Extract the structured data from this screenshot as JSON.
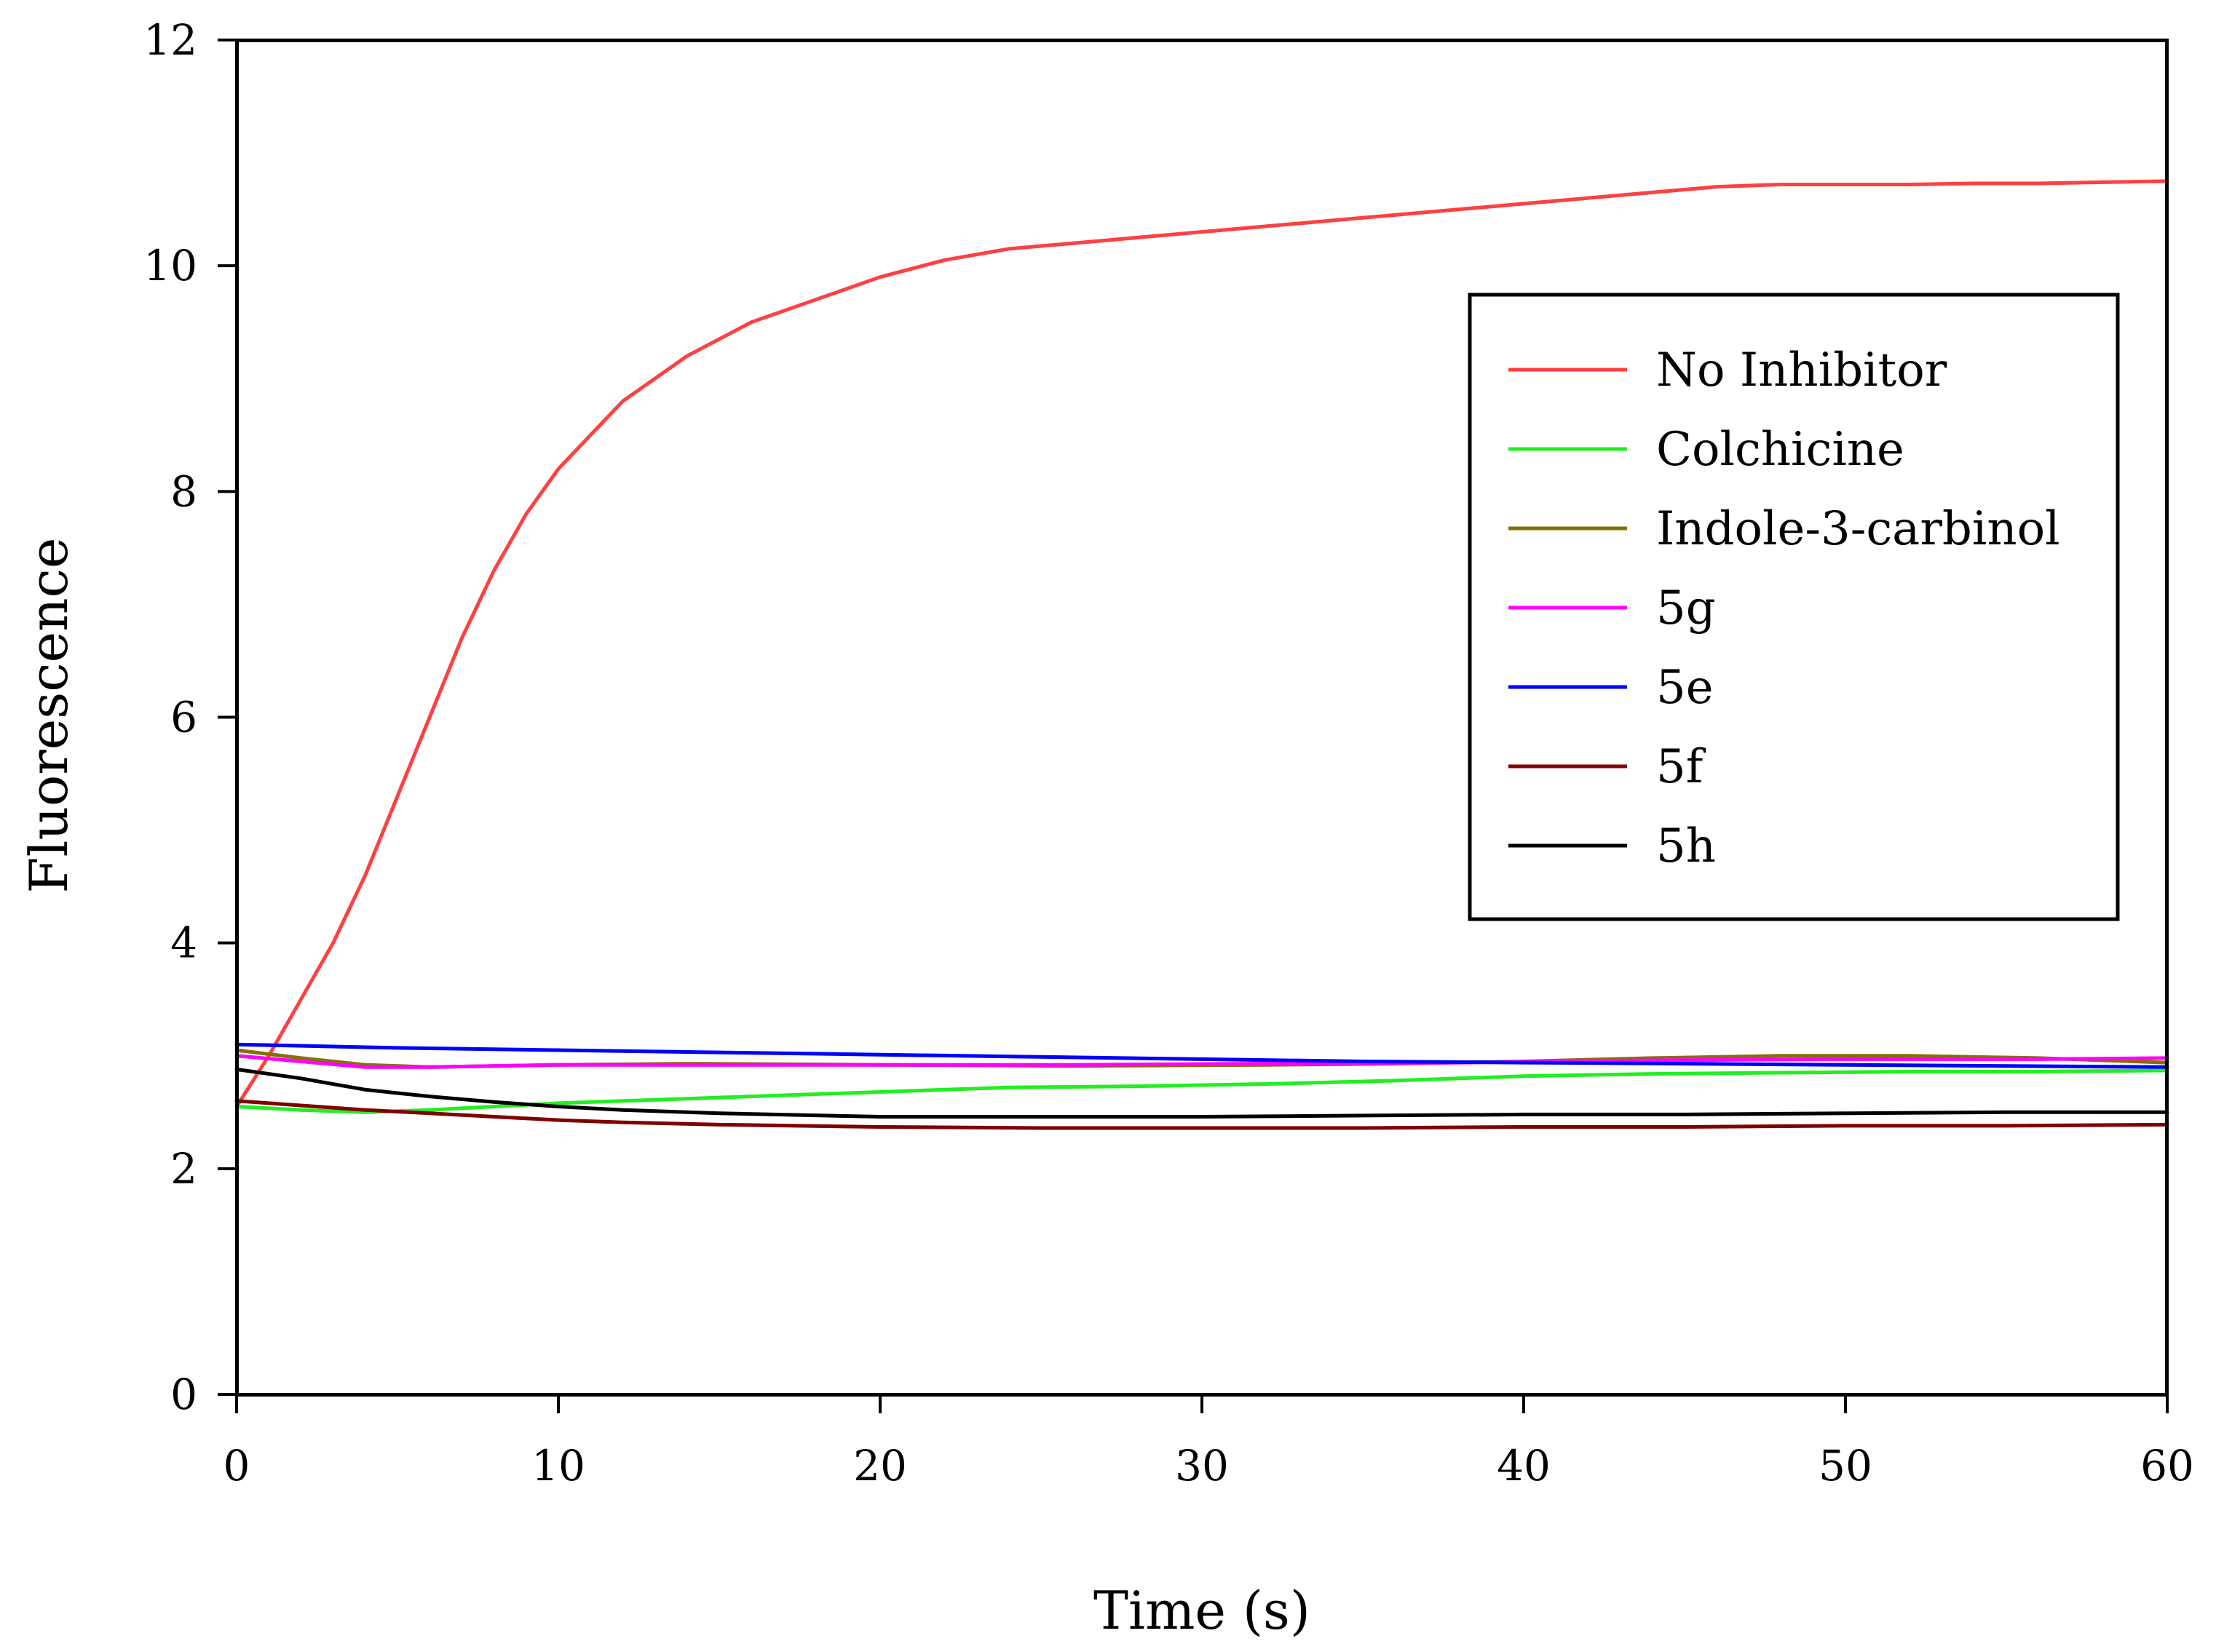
{
  "chart_data": {
    "type": "line",
    "title": "",
    "xlabel": "Time (s)",
    "ylabel": "Fluorescence",
    "xlim": [
      0,
      60
    ],
    "ylim": [
      0,
      12
    ],
    "xticks": [
      0,
      10,
      20,
      30,
      40,
      50,
      60
    ],
    "yticks": [
      0,
      2,
      4,
      6,
      8,
      10,
      12
    ],
    "grid": false,
    "legend_position": "upper-right",
    "series": [
      {
        "name": "No Inhibitor",
        "color": "#ff4040",
        "x": [
          0,
          1,
          2,
          3,
          4,
          5,
          6,
          7,
          8,
          9,
          10,
          12,
          14,
          16,
          18,
          20,
          22,
          24,
          26,
          28,
          30,
          32,
          34,
          36,
          38,
          40,
          42,
          44,
          46,
          48,
          50,
          52,
          54,
          56,
          58,
          60
        ],
        "y": [
          2.55,
          3.0,
          3.5,
          4.0,
          4.6,
          5.3,
          6.0,
          6.7,
          7.3,
          7.8,
          8.2,
          8.8,
          9.2,
          9.5,
          9.7,
          9.9,
          10.05,
          10.15,
          10.2,
          10.25,
          10.3,
          10.35,
          10.4,
          10.45,
          10.5,
          10.55,
          10.6,
          10.65,
          10.7,
          10.72,
          10.72,
          10.72,
          10.73,
          10.73,
          10.74,
          10.75
        ]
      },
      {
        "name": "Colchicine",
        "color": "#22ee22",
        "x": [
          0,
          2,
          4,
          6,
          8,
          10,
          12,
          24,
          28,
          32,
          36,
          40,
          44,
          48,
          52,
          56,
          60
        ],
        "y": [
          2.55,
          2.52,
          2.5,
          2.52,
          2.55,
          2.58,
          2.6,
          2.72,
          2.73,
          2.75,
          2.78,
          2.82,
          2.84,
          2.85,
          2.86,
          2.86,
          2.87
        ]
      },
      {
        "name": "Indole-3-carbinol",
        "color": "#857000",
        "x": [
          0,
          2,
          4,
          6,
          8,
          10,
          14,
          20,
          26,
          32,
          36,
          40,
          44,
          48,
          52,
          56,
          60
        ],
        "y": [
          3.05,
          2.98,
          2.92,
          2.9,
          2.91,
          2.92,
          2.93,
          2.92,
          2.91,
          2.92,
          2.93,
          2.95,
          2.98,
          3.0,
          3.0,
          2.98,
          2.94
        ]
      },
      {
        "name": "5g",
        "color": "#ff00ff",
        "x": [
          0,
          2,
          4,
          6,
          8,
          10,
          14,
          20,
          26,
          32,
          38,
          44,
          50,
          56,
          60
        ],
        "y": [
          3.0,
          2.95,
          2.9,
          2.9,
          2.91,
          2.92,
          2.92,
          2.92,
          2.92,
          2.93,
          2.94,
          2.96,
          2.97,
          2.97,
          2.98
        ]
      },
      {
        "name": "5e",
        "color": "#0000ff",
        "x": [
          0,
          5,
          10,
          15,
          20,
          25,
          30,
          35,
          40,
          45,
          50,
          55,
          60
        ],
        "y": [
          3.1,
          3.07,
          3.05,
          3.03,
          3.01,
          2.99,
          2.97,
          2.95,
          2.94,
          2.93,
          2.92,
          2.91,
          2.9
        ]
      },
      {
        "name": "5f",
        "color": "#800000",
        "x": [
          0,
          2,
          4,
          6,
          8,
          10,
          12,
          15,
          20,
          25,
          30,
          35,
          40,
          45,
          50,
          55,
          60
        ],
        "y": [
          2.6,
          2.56,
          2.52,
          2.49,
          2.46,
          2.43,
          2.41,
          2.39,
          2.37,
          2.36,
          2.36,
          2.36,
          2.37,
          2.37,
          2.38,
          2.38,
          2.39
        ]
      },
      {
        "name": "5h",
        "color": "#000000",
        "x": [
          0,
          2,
          4,
          6,
          8,
          10,
          12,
          15,
          20,
          25,
          30,
          35,
          40,
          45,
          50,
          55,
          60
        ],
        "y": [
          2.88,
          2.8,
          2.7,
          2.64,
          2.59,
          2.55,
          2.52,
          2.49,
          2.46,
          2.46,
          2.46,
          2.47,
          2.48,
          2.48,
          2.49,
          2.5,
          2.5
        ]
      }
    ]
  }
}
